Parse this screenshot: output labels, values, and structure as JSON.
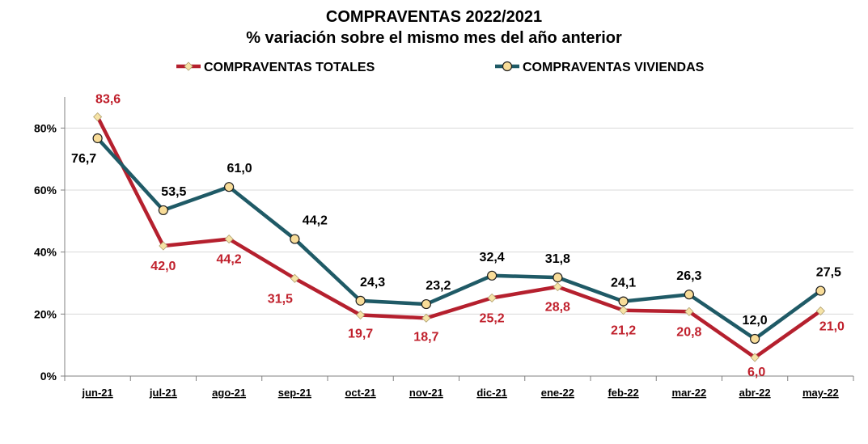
{
  "chart_data": {
    "type": "line",
    "title": "COMPRAVENTAS 2022/2021",
    "subtitle": "% variación sobre el mismo mes del año anterior",
    "categories": [
      "jun-21",
      "jul-21",
      "ago-21",
      "sep-21",
      "oct-21",
      "nov-21",
      "dic-21",
      "ene-22",
      "feb-22",
      "mar-22",
      "abr-22",
      "may-22"
    ],
    "y_ticks": [
      "0%",
      "20%",
      "40%",
      "60%",
      "80%"
    ],
    "ylim": [
      0,
      90
    ],
    "grid": "horizontal",
    "legend_position": "top",
    "series": [
      {
        "name": "COMPRAVENTAS TOTALES",
        "color": "#b5202e",
        "marker": "diamond",
        "values": [
          83.6,
          42.0,
          44.2,
          31.5,
          19.7,
          18.7,
          25.2,
          28.8,
          21.2,
          20.8,
          6.0,
          21.0
        ],
        "labels": [
          "83,6",
          "42,0",
          "44,2",
          "31,5",
          "19,7",
          "18,7",
          "25,2",
          "28,8",
          "21,2",
          "20,8",
          "6,0",
          "21,0"
        ]
      },
      {
        "name": "COMPRAVENTAS VIVIENDAS",
        "color": "#1f5a66",
        "marker": "circle",
        "values": [
          76.7,
          53.5,
          61.0,
          44.2,
          24.3,
          23.2,
          32.4,
          31.8,
          24.1,
          26.3,
          12.0,
          27.5
        ],
        "labels": [
          "76,7",
          "53,5",
          "61,0",
          "44,2",
          "24,3",
          "23,2",
          "32,4",
          "31,8",
          "24,1",
          "26,3",
          "12,0",
          "27,5"
        ]
      }
    ]
  }
}
